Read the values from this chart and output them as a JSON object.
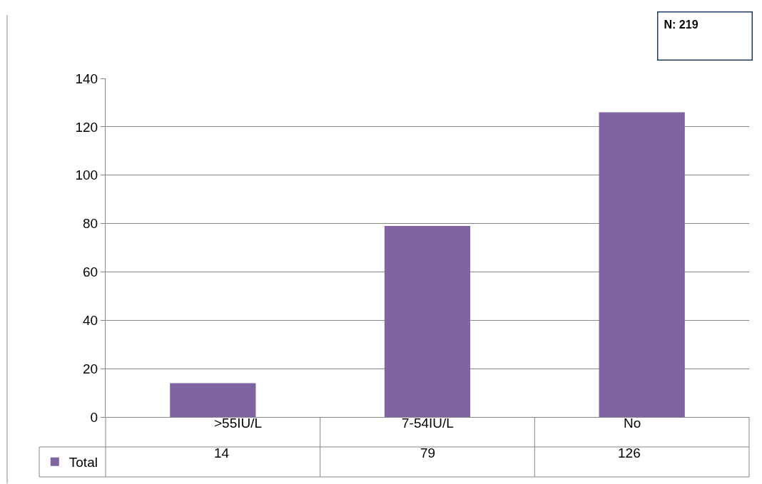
{
  "chart_data": {
    "type": "bar",
    "categories": [
      ">55IU/L",
      "7-54IU/L",
      "No"
    ],
    "series": [
      {
        "name": "Total",
        "color": "#8064a2",
        "values": [
          14,
          79,
          126
        ]
      }
    ],
    "ylim": [
      0,
      140
    ],
    "yticks": [
      0,
      20,
      40,
      60,
      80,
      100,
      120,
      140
    ],
    "grid": "y",
    "data_labels": true,
    "legend": "bottom left",
    "annotations": [
      "N: 219"
    ]
  }
}
